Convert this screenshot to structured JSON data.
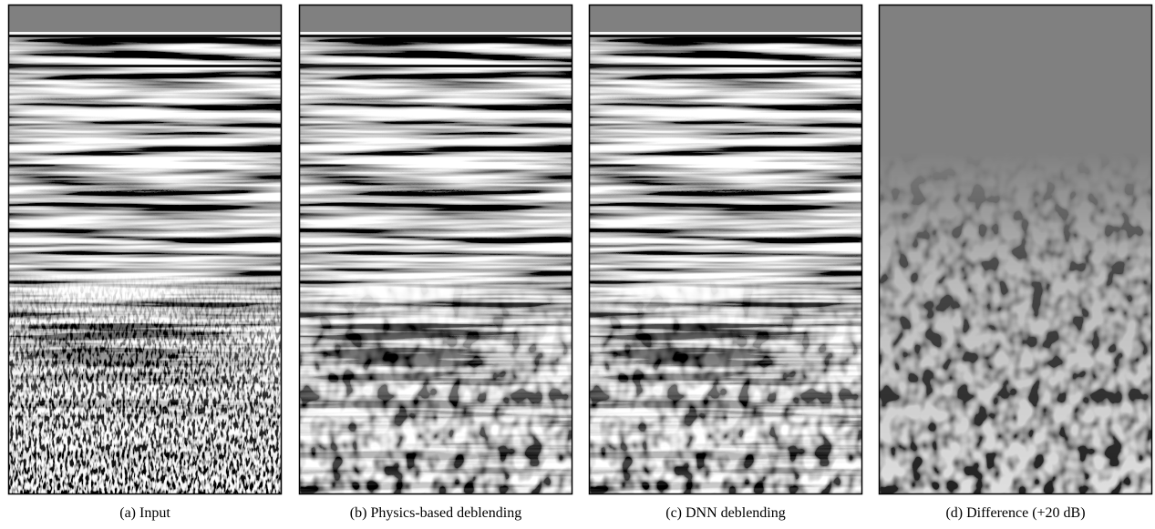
{
  "figure": {
    "panels": [
      {
        "caption": "(a) Input"
      },
      {
        "caption": "(b) Physics-based deblending"
      },
      {
        "caption": "(c) DNN deblending"
      },
      {
        "caption": "(d) Difference (+20 dB)"
      }
    ]
  }
}
